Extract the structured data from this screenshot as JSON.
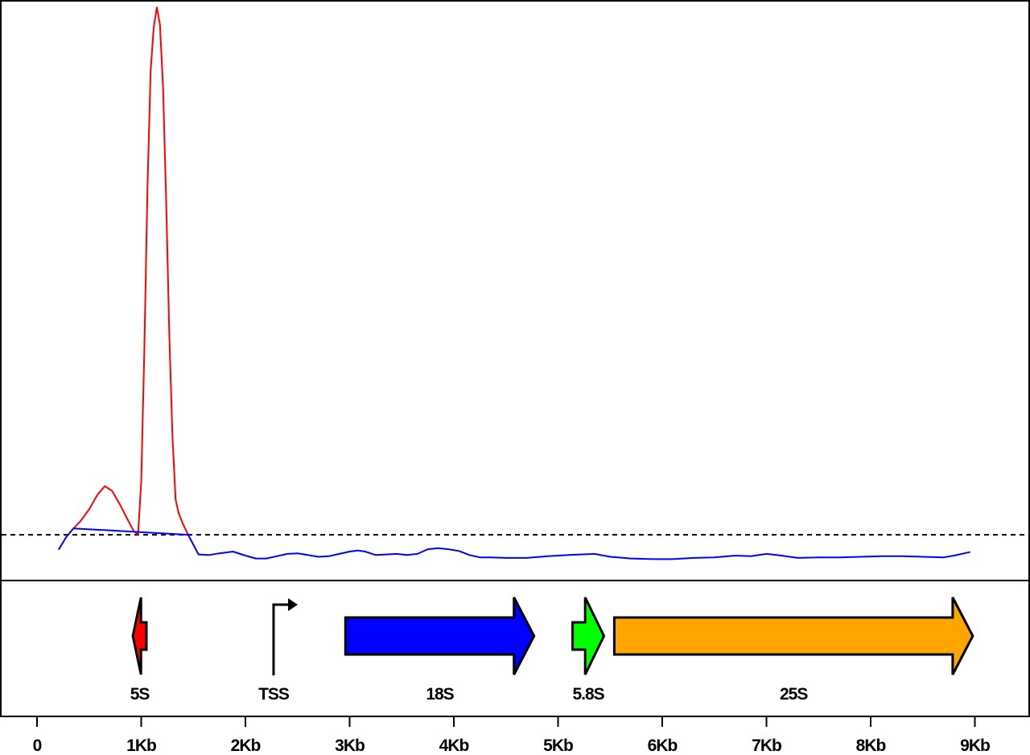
{
  "chart_data": {
    "type": "line",
    "title": "",
    "xlabel": "",
    "ylabel": "",
    "xlim": [
      -0.05,
      9.35
    ],
    "ylim": [
      0,
      1
    ],
    "x_ticks": [
      {
        "value": 0,
        "label": "0"
      },
      {
        "value": 1,
        "label": "1Kb"
      },
      {
        "value": 2,
        "label": "2Kb"
      },
      {
        "value": 3,
        "label": "3Kb"
      },
      {
        "value": 4,
        "label": "4Kb"
      },
      {
        "value": 5,
        "label": "5Kb"
      },
      {
        "value": 6,
        "label": "6Kb"
      },
      {
        "value": 7,
        "label": "7Kb"
      },
      {
        "value": 8,
        "label": "8Kb"
      },
      {
        "value": 9,
        "label": "9Kb"
      }
    ],
    "threshold": 0.079,
    "grid": false,
    "series": [
      {
        "color": "#ff0000",
        "segment": "above-threshold",
        "x": [
          0.35,
          0.42,
          0.5,
          0.58,
          0.65,
          0.72,
          0.8,
          0.87,
          0.93,
          0.97,
          1.0,
          1.03,
          1.06,
          1.09,
          1.12,
          1.15,
          1.18,
          1.21,
          1.24,
          1.27,
          1.3,
          1.33,
          1.36,
          1.4,
          1.45
        ],
        "y": [
          0.09,
          0.103,
          0.123,
          0.148,
          0.163,
          0.155,
          0.13,
          0.105,
          0.085,
          0.08,
          0.17,
          0.4,
          0.68,
          0.88,
          0.955,
          0.99,
          0.96,
          0.85,
          0.65,
          0.42,
          0.25,
          0.14,
          0.116,
          0.098,
          0.079
        ]
      },
      {
        "color": "#0000ff",
        "segment": "below-threshold",
        "x": [
          0.21,
          0.28,
          0.35,
          1.45,
          1.55,
          1.65,
          1.75,
          1.88,
          2.0,
          2.1,
          2.2,
          2.3,
          2.4,
          2.5,
          2.6,
          2.7,
          2.8,
          2.9,
          3.0,
          3.08,
          3.15,
          3.25,
          3.35,
          3.45,
          3.55,
          3.65,
          3.75,
          3.85,
          3.95,
          4.05,
          4.15,
          4.25,
          4.35,
          4.5,
          4.7,
          4.9,
          5.1,
          5.35,
          5.5,
          5.7,
          5.9,
          6.1,
          6.3,
          6.5,
          6.7,
          6.85,
          7.0,
          7.1,
          7.3,
          7.5,
          7.7,
          7.9,
          8.1,
          8.3,
          8.5,
          8.7,
          8.8,
          8.95
        ],
        "y": [
          0.054,
          0.075,
          0.09,
          0.079,
          0.045,
          0.044,
          0.047,
          0.05,
          0.043,
          0.038,
          0.038,
          0.042,
          0.046,
          0.047,
          0.044,
          0.041,
          0.042,
          0.046,
          0.05,
          0.052,
          0.05,
          0.044,
          0.045,
          0.046,
          0.044,
          0.046,
          0.054,
          0.056,
          0.054,
          0.051,
          0.044,
          0.04,
          0.04,
          0.039,
          0.039,
          0.042,
          0.044,
          0.046,
          0.041,
          0.038,
          0.037,
          0.037,
          0.039,
          0.04,
          0.043,
          0.042,
          0.046,
          0.044,
          0.039,
          0.04,
          0.04,
          0.041,
          0.042,
          0.042,
          0.041,
          0.04,
          0.043,
          0.049
        ]
      }
    ],
    "features": [
      {
        "type": "gene",
        "label": "5S",
        "start": 1.05,
        "end": 0.92,
        "strand": "-",
        "color": "#ff0000"
      },
      {
        "type": "tss",
        "label": "TSS",
        "position": 2.27,
        "direction": "+"
      },
      {
        "type": "gene",
        "label": "18S",
        "start": 2.96,
        "end": 4.77,
        "strand": "+",
        "color": "#0000ff"
      },
      {
        "type": "gene",
        "label": "5.8S",
        "start": 5.14,
        "end": 5.44,
        "strand": "+",
        "color": "#00ff00"
      },
      {
        "type": "gene",
        "label": "25S",
        "start": 5.54,
        "end": 8.98,
        "strand": "+",
        "color": "#ffa500"
      }
    ]
  }
}
